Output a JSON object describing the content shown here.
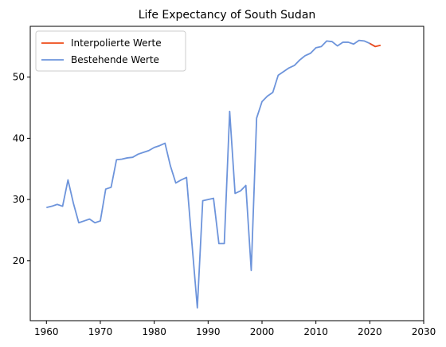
{
  "chart_data": {
    "type": "line",
    "title": "Life Expectancy of South Sudan",
    "xlabel": "",
    "ylabel": "",
    "xlim": [
      1957,
      2030
    ],
    "ylim": [
      10.2,
      58.3
    ],
    "xticks": [
      1960,
      1970,
      1980,
      1990,
      2000,
      2010,
      2020,
      2030
    ],
    "yticks": [
      20,
      30,
      40,
      50
    ],
    "grid": false,
    "legend_position": "upper-left",
    "series": [
      {
        "name": "Interpolierte Werte",
        "color": "#ee4b1a",
        "x": [
          2020,
          2021,
          2022
        ],
        "y": [
          55.5,
          55.0,
          55.2
        ]
      },
      {
        "name": "Bestehende Werte",
        "color": "#6d94db",
        "x": [
          1960,
          1961,
          1962,
          1963,
          1964,
          1965,
          1966,
          1967,
          1968,
          1969,
          1970,
          1971,
          1972,
          1973,
          1974,
          1975,
          1976,
          1977,
          1978,
          1979,
          1980,
          1981,
          1982,
          1983,
          1984,
          1985,
          1986,
          1987,
          1988,
          1989,
          1990,
          1991,
          1992,
          1993,
          1994,
          1995,
          1996,
          1997,
          1998,
          1999,
          2000,
          2001,
          2002,
          2003,
          2004,
          2005,
          2006,
          2007,
          2008,
          2009,
          2010,
          2011,
          2012,
          2013,
          2014,
          2015,
          2016,
          2017,
          2018,
          2019,
          2020,
          2021
        ],
        "y": [
          28.7,
          28.9,
          29.2,
          28.9,
          33.2,
          29.4,
          26.2,
          26.5,
          26.8,
          26.2,
          26.5,
          31.7,
          32.0,
          36.5,
          36.6,
          36.8,
          36.9,
          37.4,
          37.7,
          38.0,
          38.5,
          38.8,
          39.2,
          35.5,
          32.7,
          33.2,
          33.6,
          22.8,
          12.3,
          29.8,
          30.0,
          30.2,
          22.8,
          22.8,
          44.4,
          31.0,
          31.4,
          32.3,
          18.4,
          43.3,
          46.0,
          46.9,
          47.5,
          50.3,
          50.9,
          51.5,
          51.9,
          52.8,
          53.5,
          53.9,
          54.8,
          55.0,
          55.9,
          55.8,
          55.1,
          55.7,
          55.7,
          55.4,
          56.0,
          55.9,
          55.5,
          55.0
        ]
      }
    ]
  }
}
